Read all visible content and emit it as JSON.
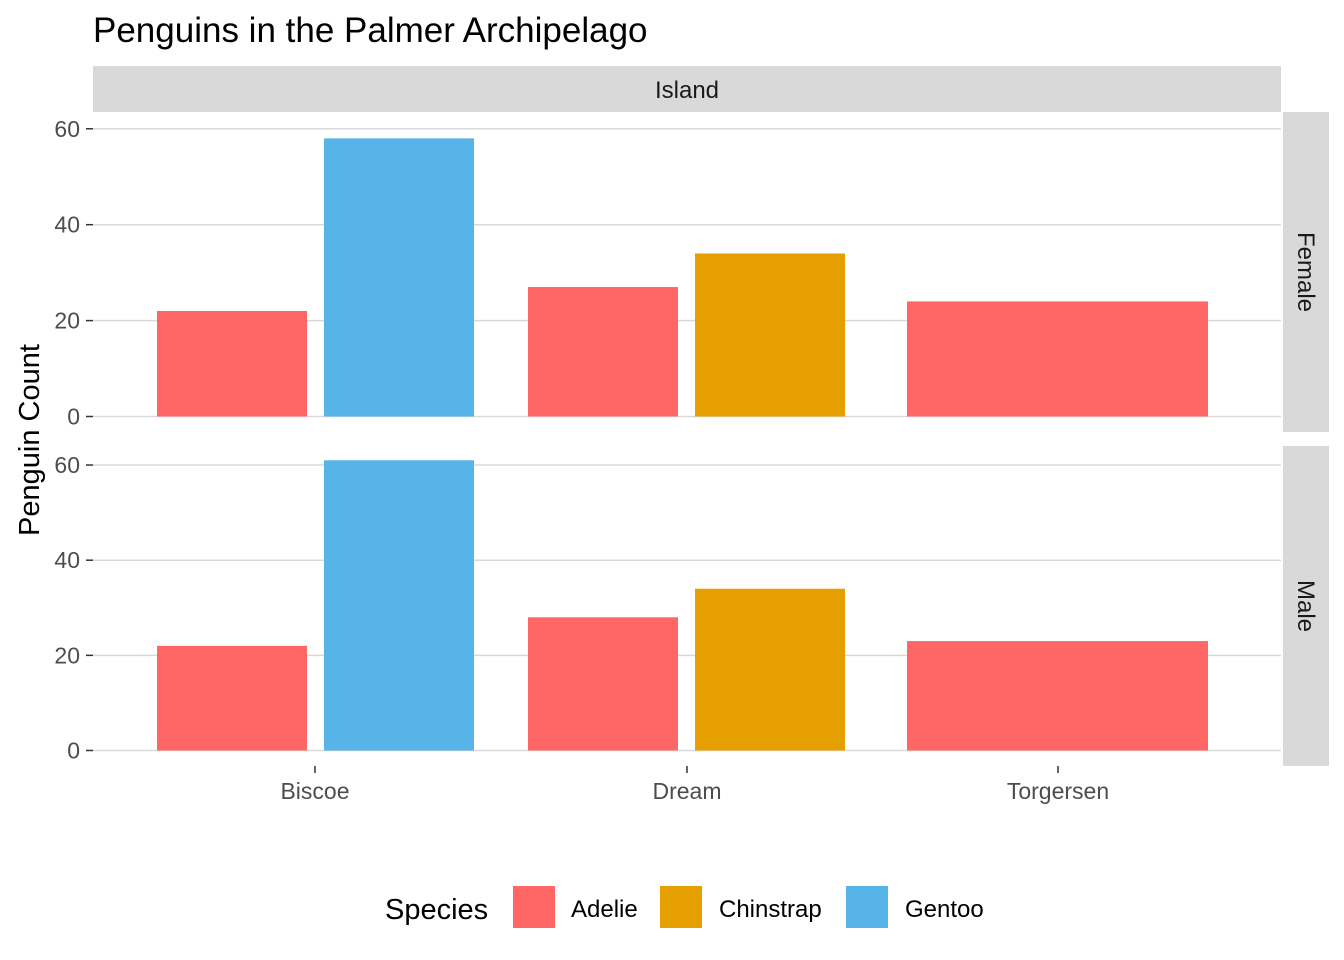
{
  "chart_data": {
    "type": "bar",
    "title": "Penguins in the Palmer Archipelago",
    "xlabel": "",
    "ylabel": "Penguin Count",
    "column_facet_label": "Island",
    "categories": [
      "Biscoe",
      "Dream",
      "Torgersen"
    ],
    "species": [
      {
        "name": "Adelie",
        "color": "#FF6666"
      },
      {
        "name": "Chinstrap",
        "color": "#E69F00"
      },
      {
        "name": "Gentoo",
        "color": "#56B4E9"
      }
    ],
    "legend": {
      "title": "Species",
      "position": "bottom"
    },
    "y_ticks": [
      0,
      20,
      40,
      60
    ],
    "grid": true,
    "panels": [
      {
        "row_label": "Female",
        "ylim": [
          0,
          63.5
        ],
        "series": [
          {
            "name": "Adelie",
            "values": [
              22,
              27,
              24
            ]
          },
          {
            "name": "Chinstrap",
            "values": [
              null,
              34,
              null
            ]
          },
          {
            "name": "Gentoo",
            "values": [
              58,
              null,
              null
            ]
          }
        ]
      },
      {
        "row_label": "Male",
        "ylim": [
          0,
          64
        ],
        "series": [
          {
            "name": "Adelie",
            "values": [
              22,
              28,
              23
            ]
          },
          {
            "name": "Chinstrap",
            "values": [
              null,
              34,
              null
            ]
          },
          {
            "name": "Gentoo",
            "values": [
              61,
              null,
              null
            ]
          }
        ]
      }
    ]
  }
}
